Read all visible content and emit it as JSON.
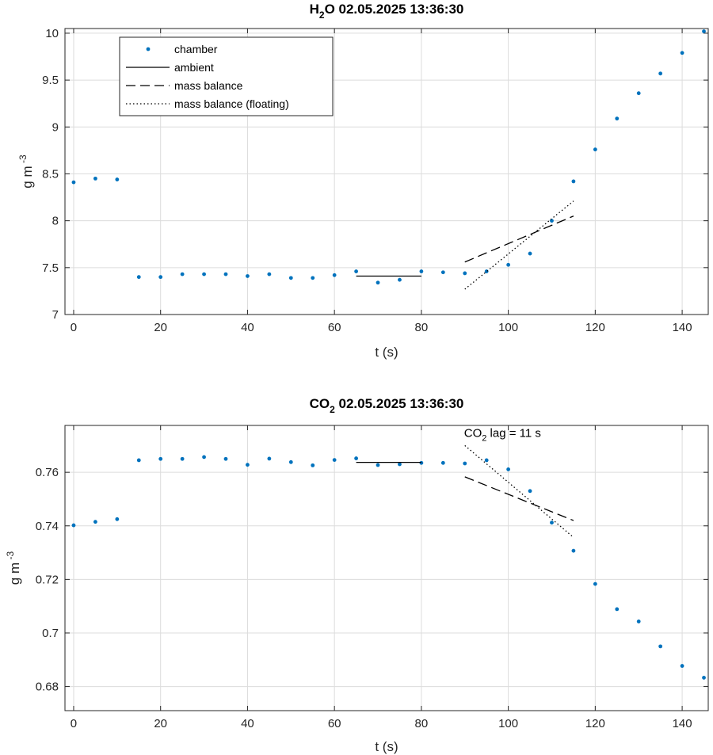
{
  "chart_data": [
    {
      "type": "scatter",
      "title": {
        "main": "H",
        "sub": "2",
        "rest": "O  02.05.2025 13:36:30"
      },
      "xlabel": "t (s)",
      "ylabel": {
        "main": "g m",
        "sup": "-3"
      },
      "xlim": [
        -2,
        146
      ],
      "ylim": [
        7,
        10.05
      ],
      "xticks": [
        0,
        20,
        40,
        60,
        80,
        100,
        120,
        140
      ],
      "yticks": [
        7,
        7.5,
        8,
        8.5,
        9,
        9.5,
        10
      ],
      "ytick_labels": [
        "7",
        "7.5",
        "8",
        "8.5",
        "9",
        "9.5",
        "10"
      ],
      "grid": true,
      "legend_position": "top-left",
      "legend": [
        "chamber",
        "ambient",
        "mass balance",
        "mass balance (floating)"
      ],
      "series": [
        {
          "name": "chamber",
          "style": "points",
          "x": [
            0,
            5,
            10,
            15,
            20,
            25,
            30,
            35,
            40,
            45,
            50,
            55,
            60,
            65,
            70,
            75,
            80,
            85,
            90,
            95,
            100,
            105,
            110,
            115,
            120,
            125,
            130,
            135,
            140,
            145
          ],
          "y": [
            8.41,
            8.45,
            8.44,
            7.4,
            7.4,
            7.43,
            7.43,
            7.43,
            7.41,
            7.43,
            7.39,
            7.39,
            7.42,
            7.46,
            7.34,
            7.37,
            7.46,
            7.45,
            7.44,
            7.46,
            7.53,
            7.65,
            8.0,
            8.42,
            8.76,
            9.09,
            9.36,
            9.57,
            9.79,
            10.02
          ]
        },
        {
          "name": "ambient",
          "style": "solid",
          "x": [
            65,
            80
          ],
          "y": [
            7.41,
            7.41
          ]
        },
        {
          "name": "mass balance",
          "style": "dashed",
          "x": [
            90,
            115
          ],
          "y": [
            7.56,
            8.05
          ]
        },
        {
          "name": "mass balance (floating)",
          "style": "dotted",
          "x": [
            90,
            115
          ],
          "y": [
            7.27,
            8.21
          ]
        }
      ],
      "annotations": []
    },
    {
      "type": "scatter",
      "title": {
        "main": "CO",
        "sub": "2",
        "rest": "  02.05.2025 13:36:30"
      },
      "xlabel": "t (s)",
      "ylabel": {
        "main": "g m",
        "sup": "-3"
      },
      "xlim": [
        -2,
        146
      ],
      "ylim": [
        0.671,
        0.7775
      ],
      "xticks": [
        0,
        20,
        40,
        60,
        80,
        100,
        120,
        140
      ],
      "yticks": [
        0.68,
        0.7,
        0.72,
        0.74,
        0.76
      ],
      "ytick_labels": [
        "0.68",
        "0.7",
        "0.72",
        "0.74",
        "0.76"
      ],
      "grid": true,
      "legend": [],
      "series": [
        {
          "name": "chamber",
          "style": "points",
          "x": [
            0,
            5,
            10,
            15,
            20,
            25,
            30,
            35,
            40,
            45,
            50,
            55,
            60,
            65,
            70,
            75,
            80,
            85,
            90,
            95,
            100,
            105,
            110,
            115,
            120,
            125,
            130,
            135,
            140,
            145
          ],
          "y": [
            0.7402,
            0.7415,
            0.7425,
            0.7645,
            0.765,
            0.765,
            0.7657,
            0.765,
            0.7628,
            0.7651,
            0.7638,
            0.7626,
            0.7646,
            0.7652,
            0.7627,
            0.763,
            0.7635,
            0.7635,
            0.7633,
            0.7645,
            0.7611,
            0.753,
            0.7412,
            0.7307,
            0.7183,
            0.7089,
            0.7043,
            0.695,
            0.6877,
            0.6833
          ]
        },
        {
          "name": "ambient",
          "style": "solid",
          "x": [
            65,
            80
          ],
          "y": [
            0.7637,
            0.7637
          ]
        },
        {
          "name": "mass balance",
          "style": "dashed",
          "x": [
            90,
            115
          ],
          "y": [
            0.7583,
            0.742
          ]
        },
        {
          "name": "mass balance (floating)",
          "style": "dotted",
          "x": [
            90,
            115
          ],
          "y": [
            0.77,
            0.7357
          ]
        }
      ],
      "annotations": [
        {
          "main": "CO",
          "sub": "2",
          "rest": " lag = 11 s",
          "x": 90,
          "y": 0.7715
        }
      ]
    }
  ]
}
